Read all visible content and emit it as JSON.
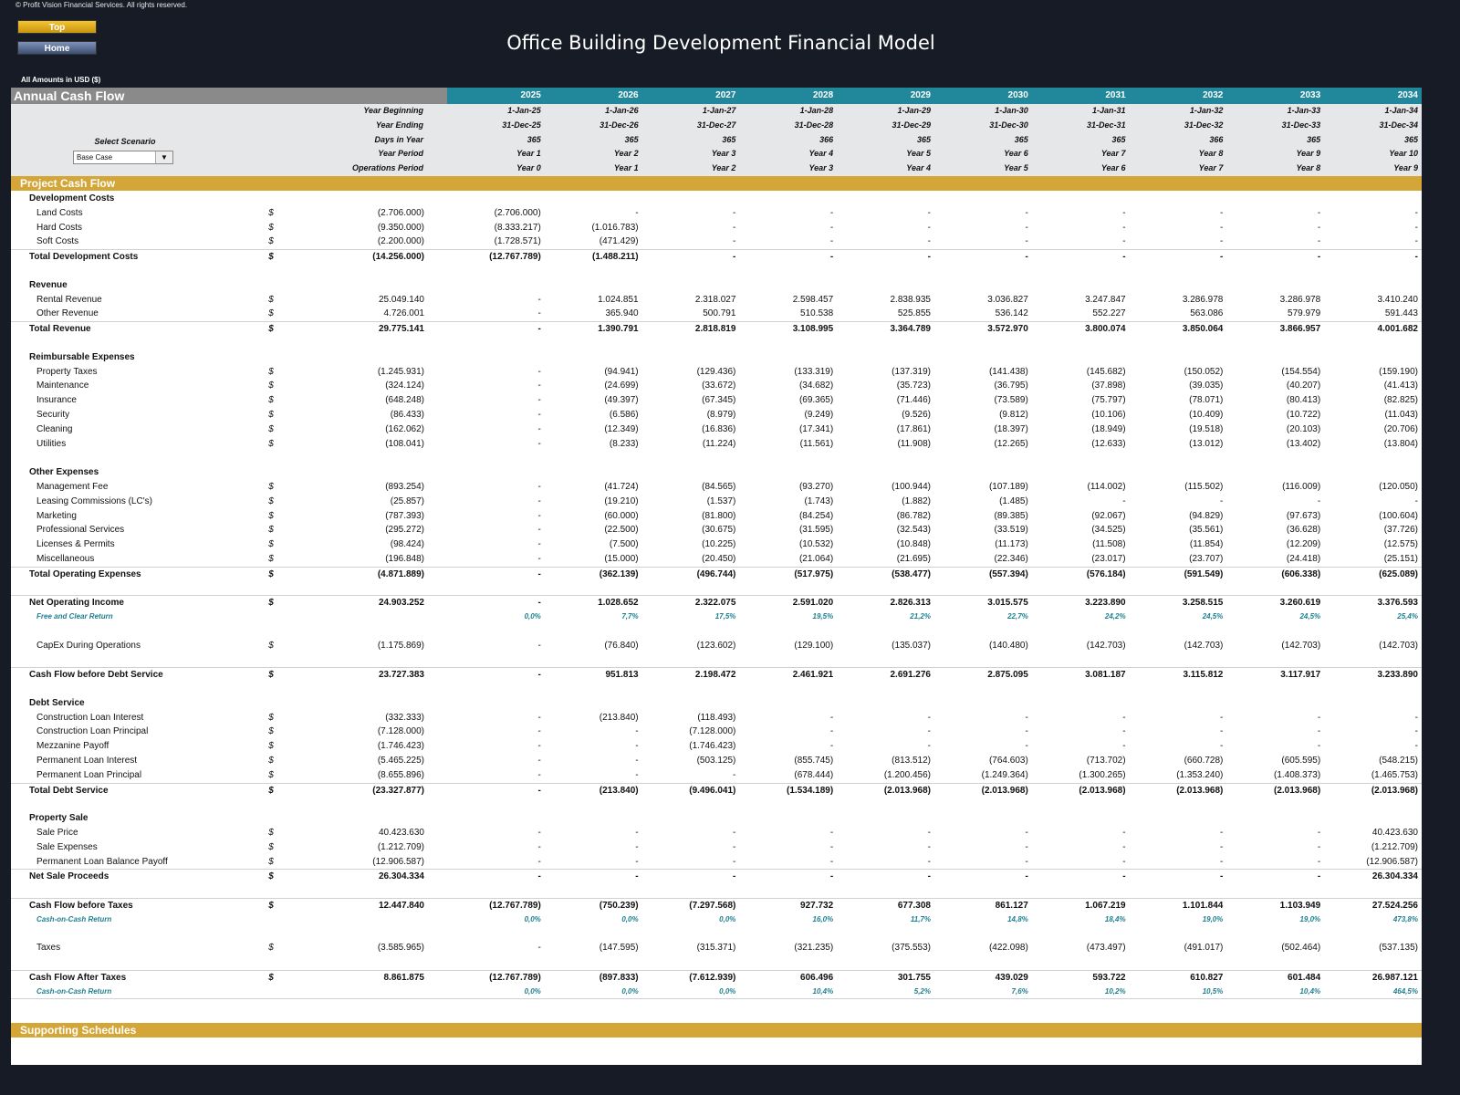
{
  "copyright": "© Profit Vision Financial Services. All rights reserved.",
  "nav": {
    "top": "Top",
    "home": "Home"
  },
  "title": "Office Building Development Financial Model",
  "units": "All Amounts in  USD ($)",
  "sheet_title": "Annual Cash Flow",
  "years": [
    "2025",
    "2026",
    "2027",
    "2028",
    "2029",
    "2030",
    "2031",
    "2032",
    "2033",
    "2034"
  ],
  "scenario": {
    "label": "Select Scenario",
    "value": "Base Case"
  },
  "info_rows": [
    {
      "label": "Year Beginning",
      "values": [
        "1-Jan-25",
        "1-Jan-26",
        "1-Jan-27",
        "1-Jan-28",
        "1-Jan-29",
        "1-Jan-30",
        "1-Jan-31",
        "1-Jan-32",
        "1-Jan-33",
        "1-Jan-34"
      ]
    },
    {
      "label": "Year Ending",
      "values": [
        "31-Dec-25",
        "31-Dec-26",
        "31-Dec-27",
        "31-Dec-28",
        "31-Dec-29",
        "31-Dec-30",
        "31-Dec-31",
        "31-Dec-32",
        "31-Dec-33",
        "31-Dec-34"
      ]
    },
    {
      "label": "Days in Year",
      "values": [
        "365",
        "365",
        "365",
        "366",
        "365",
        "365",
        "365",
        "366",
        "365",
        "365"
      ]
    },
    {
      "label": "Year Period",
      "values": [
        "Year 1",
        "Year 2",
        "Year 3",
        "Year 4",
        "Year 5",
        "Year 6",
        "Year 7",
        "Year 8",
        "Year 9",
        "Year 10"
      ]
    },
    {
      "label": "Operations Period",
      "values": [
        "Year 0",
        "Year 1",
        "Year 2",
        "Year 3",
        "Year 4",
        "Year 5",
        "Year 6",
        "Year 7",
        "Year 8",
        "Year 9"
      ]
    }
  ],
  "section_title": "Project Cash Flow",
  "footer_section": "Supporting Schedules",
  "currency": "$",
  "rows": [
    {
      "type": "section",
      "label": "Development Costs"
    },
    {
      "type": "item",
      "label": "Land Costs",
      "total": "(2.706.000)",
      "values": [
        "(2.706.000)",
        "-",
        "-",
        "-",
        "-",
        "-",
        "-",
        "-",
        "-",
        "-"
      ]
    },
    {
      "type": "item",
      "label": "Hard Costs",
      "total": "(9.350.000)",
      "values": [
        "(8.333.217)",
        "(1.016.783)",
        "-",
        "-",
        "-",
        "-",
        "-",
        "-",
        "-",
        "-"
      ]
    },
    {
      "type": "item",
      "label": "Soft Costs",
      "total": "(2.200.000)",
      "values": [
        "(1.728.571)",
        "(471.429)",
        "-",
        "-",
        "-",
        "-",
        "-",
        "-",
        "-",
        "-"
      ]
    },
    {
      "type": "total",
      "label": "Total Development Costs",
      "total": "(14.256.000)",
      "values": [
        "(12.767.789)",
        "(1.488.211)",
        "-",
        "-",
        "-",
        "-",
        "-",
        "-",
        "-",
        "-"
      ]
    },
    {
      "type": "blank"
    },
    {
      "type": "section",
      "label": "Revenue"
    },
    {
      "type": "item",
      "label": "Rental Revenue",
      "total": "25.049.140",
      "values": [
        "-",
        "1.024.851",
        "2.318.027",
        "2.598.457",
        "2.838.935",
        "3.036.827",
        "3.247.847",
        "3.286.978",
        "3.286.978",
        "3.410.240"
      ]
    },
    {
      "type": "item",
      "label": "Other Revenue",
      "total": "4.726.001",
      "values": [
        "-",
        "365.940",
        "500.791",
        "510.538",
        "525.855",
        "536.142",
        "552.227",
        "563.086",
        "579.979",
        "591.443"
      ]
    },
    {
      "type": "total",
      "label": "Total Revenue",
      "total": "29.775.141",
      "values": [
        "-",
        "1.390.791",
        "2.818.819",
        "3.108.995",
        "3.364.789",
        "3.572.970",
        "3.800.074",
        "3.850.064",
        "3.866.957",
        "4.001.682"
      ]
    },
    {
      "type": "blank"
    },
    {
      "type": "section",
      "label": "Reimbursable Expenses"
    },
    {
      "type": "item",
      "label": "Property Taxes",
      "total": "(1.245.931)",
      "values": [
        "-",
        "(94.941)",
        "(129.436)",
        "(133.319)",
        "(137.319)",
        "(141.438)",
        "(145.682)",
        "(150.052)",
        "(154.554)",
        "(159.190)"
      ]
    },
    {
      "type": "item",
      "label": "Maintenance",
      "total": "(324.124)",
      "values": [
        "-",
        "(24.699)",
        "(33.672)",
        "(34.682)",
        "(35.723)",
        "(36.795)",
        "(37.898)",
        "(39.035)",
        "(40.207)",
        "(41.413)"
      ]
    },
    {
      "type": "item",
      "label": "Insurance",
      "total": "(648.248)",
      "values": [
        "-",
        "(49.397)",
        "(67.345)",
        "(69.365)",
        "(71.446)",
        "(73.589)",
        "(75.797)",
        "(78.071)",
        "(80.413)",
        "(82.825)"
      ]
    },
    {
      "type": "item",
      "label": "Security",
      "total": "(86.433)",
      "values": [
        "-",
        "(6.586)",
        "(8.979)",
        "(9.249)",
        "(9.526)",
        "(9.812)",
        "(10.106)",
        "(10.409)",
        "(10.722)",
        "(11.043)"
      ]
    },
    {
      "type": "item",
      "label": "Cleaning",
      "total": "(162.062)",
      "values": [
        "-",
        "(12.349)",
        "(16.836)",
        "(17.341)",
        "(17.861)",
        "(18.397)",
        "(18.949)",
        "(19.518)",
        "(20.103)",
        "(20.706)"
      ]
    },
    {
      "type": "item",
      "label": "Utilities",
      "total": "(108.041)",
      "values": [
        "-",
        "(8.233)",
        "(11.224)",
        "(11.561)",
        "(11.908)",
        "(12.265)",
        "(12.633)",
        "(13.012)",
        "(13.402)",
        "(13.804)"
      ]
    },
    {
      "type": "blank"
    },
    {
      "type": "section",
      "label": "Other Expenses"
    },
    {
      "type": "item",
      "label": "Management Fee",
      "total": "(893.254)",
      "values": [
        "-",
        "(41.724)",
        "(84.565)",
        "(93.270)",
        "(100.944)",
        "(107.189)",
        "(114.002)",
        "(115.502)",
        "(116.009)",
        "(120.050)"
      ]
    },
    {
      "type": "item",
      "label": "Leasing Commissions (LC's)",
      "total": "(25.857)",
      "values": [
        "-",
        "(19.210)",
        "(1.537)",
        "(1.743)",
        "(1.882)",
        "(1.485)",
        "-",
        "-",
        "-",
        "-"
      ]
    },
    {
      "type": "item",
      "label": "Marketing",
      "total": "(787.393)",
      "values": [
        "-",
        "(60.000)",
        "(81.800)",
        "(84.254)",
        "(86.782)",
        "(89.385)",
        "(92.067)",
        "(94.829)",
        "(97.673)",
        "(100.604)"
      ]
    },
    {
      "type": "item",
      "label": "Professional Services",
      "total": "(295.272)",
      "values": [
        "-",
        "(22.500)",
        "(30.675)",
        "(31.595)",
        "(32.543)",
        "(33.519)",
        "(34.525)",
        "(35.561)",
        "(36.628)",
        "(37.726)"
      ]
    },
    {
      "type": "item",
      "label": "Licenses & Permits",
      "total": "(98.424)",
      "values": [
        "-",
        "(7.500)",
        "(10.225)",
        "(10.532)",
        "(10.848)",
        "(11.173)",
        "(11.508)",
        "(11.854)",
        "(12.209)",
        "(12.575)"
      ]
    },
    {
      "type": "item",
      "label": "Miscellaneous",
      "total": "(196.848)",
      "values": [
        "-",
        "(15.000)",
        "(20.450)",
        "(21.064)",
        "(21.695)",
        "(22.346)",
        "(23.017)",
        "(23.707)",
        "(24.418)",
        "(25.151)"
      ]
    },
    {
      "type": "total",
      "label": "Total Operating Expenses",
      "total": "(4.871.889)",
      "values": [
        "-",
        "(362.139)",
        "(496.744)",
        "(517.975)",
        "(538.477)",
        "(557.394)",
        "(576.184)",
        "(591.549)",
        "(606.338)",
        "(625.089)"
      ]
    },
    {
      "type": "blank"
    },
    {
      "type": "total",
      "label": "Net Operating Income",
      "total": "24.903.252",
      "values": [
        "-",
        "1.028.652",
        "2.322.075",
        "2.591.020",
        "2.826.313",
        "3.015.575",
        "3.223.890",
        "3.258.515",
        "3.260.619",
        "3.376.593"
      ]
    },
    {
      "type": "pct",
      "label": "Free and Clear Return",
      "values": [
        "0,0%",
        "7,7%",
        "17,5%",
        "19,5%",
        "21,2%",
        "22,7%",
        "24,2%",
        "24,5%",
        "24,5%",
        "25,4%"
      ]
    },
    {
      "type": "blank"
    },
    {
      "type": "item",
      "label": "CapEx During Operations",
      "total": "(1.175.869)",
      "values": [
        "-",
        "(76.840)",
        "(123.602)",
        "(129.100)",
        "(135.037)",
        "(140.480)",
        "(142.703)",
        "(142.703)",
        "(142.703)",
        "(142.703)"
      ]
    },
    {
      "type": "blank"
    },
    {
      "type": "total",
      "label": "Cash Flow before Debt Service",
      "total": "23.727.383",
      "values": [
        "-",
        "951.813",
        "2.198.472",
        "2.461.921",
        "2.691.276",
        "2.875.095",
        "3.081.187",
        "3.115.812",
        "3.117.917",
        "3.233.890"
      ]
    },
    {
      "type": "blank"
    },
    {
      "type": "section",
      "label": "Debt Service"
    },
    {
      "type": "item",
      "label": "Construction Loan Interest",
      "total": "(332.333)",
      "values": [
        "-",
        "(213.840)",
        "(118.493)",
        "-",
        "-",
        "-",
        "-",
        "-",
        "-",
        "-"
      ]
    },
    {
      "type": "item",
      "label": "Construction Loan Principal",
      "total": "(7.128.000)",
      "values": [
        "-",
        "-",
        "(7.128.000)",
        "-",
        "-",
        "-",
        "-",
        "-",
        "-",
        "-"
      ]
    },
    {
      "type": "item",
      "label": "Mezzanine Payoff",
      "total": "(1.746.423)",
      "values": [
        "-",
        "-",
        "(1.746.423)",
        "-",
        "-",
        "-",
        "-",
        "-",
        "-",
        "-"
      ]
    },
    {
      "type": "item",
      "label": "Permanent Loan Interest",
      "total": "(5.465.225)",
      "values": [
        "-",
        "-",
        "(503.125)",
        "(855.745)",
        "(813.512)",
        "(764.603)",
        "(713.702)",
        "(660.728)",
        "(605.595)",
        "(548.215)"
      ]
    },
    {
      "type": "item",
      "label": "Permanent Loan Principal",
      "total": "(8.655.896)",
      "values": [
        "-",
        "-",
        "-",
        "(678.444)",
        "(1.200.456)",
        "(1.249.364)",
        "(1.300.265)",
        "(1.353.240)",
        "(1.408.373)",
        "(1.465.753)"
      ]
    },
    {
      "type": "total",
      "label": "Total Debt Service",
      "total": "(23.327.877)",
      "values": [
        "-",
        "(213.840)",
        "(9.496.041)",
        "(1.534.189)",
        "(2.013.968)",
        "(2.013.968)",
        "(2.013.968)",
        "(2.013.968)",
        "(2.013.968)",
        "(2.013.968)"
      ]
    },
    {
      "type": "blank"
    },
    {
      "type": "section",
      "label": "Property Sale"
    },
    {
      "type": "item",
      "label": "Sale Price",
      "total": "40.423.630",
      "values": [
        "-",
        "-",
        "-",
        "-",
        "-",
        "-",
        "-",
        "-",
        "-",
        "40.423.630"
      ]
    },
    {
      "type": "item",
      "label": "Sale Expenses",
      "total": "(1.212.709)",
      "values": [
        "-",
        "-",
        "-",
        "-",
        "-",
        "-",
        "-",
        "-",
        "-",
        "(1.212.709)"
      ]
    },
    {
      "type": "item",
      "label": "Permanent Loan Balance Payoff",
      "total": "(12.906.587)",
      "values": [
        "-",
        "-",
        "-",
        "-",
        "-",
        "-",
        "-",
        "-",
        "-",
        "(12.906.587)"
      ]
    },
    {
      "type": "total",
      "label": "Net Sale Proceeds",
      "total": "26.304.334",
      "values": [
        "-",
        "-",
        "-",
        "-",
        "-",
        "-",
        "-",
        "-",
        "-",
        "26.304.334"
      ]
    },
    {
      "type": "blank"
    },
    {
      "type": "total",
      "label": "Cash Flow before Taxes",
      "total": "12.447.840",
      "values": [
        "(12.767.789)",
        "(750.239)",
        "(7.297.568)",
        "927.732",
        "677.308",
        "861.127",
        "1.067.219",
        "1.101.844",
        "1.103.949",
        "27.524.256"
      ]
    },
    {
      "type": "pct",
      "label": "Cash-on-Cash Return",
      "values": [
        "0,0%",
        "0,0%",
        "0,0%",
        "16,0%",
        "11,7%",
        "14,8%",
        "18,4%",
        "19,0%",
        "19,0%",
        "473,8%"
      ]
    },
    {
      "type": "blank"
    },
    {
      "type": "item",
      "label": "Taxes",
      "total": "(3.585.965)",
      "values": [
        "-",
        "(147.595)",
        "(315.371)",
        "(321.235)",
        "(375.553)",
        "(422.098)",
        "(473.497)",
        "(491.017)",
        "(502.464)",
        "(537.135)"
      ]
    },
    {
      "type": "blank"
    },
    {
      "type": "total",
      "label": "Cash Flow After Taxes",
      "total": "8.861.875",
      "values": [
        "(12.767.789)",
        "(897.833)",
        "(7.612.939)",
        "606.496",
        "301.755",
        "439.029",
        "593.722",
        "610.827",
        "601.484",
        "26.987.121"
      ]
    },
    {
      "type": "pct",
      "label": "Cash-on-Cash Return",
      "values": [
        "0,0%",
        "0,0%",
        "0,0%",
        "10,4%",
        "5,2%",
        "7,6%",
        "10,2%",
        "10,5%",
        "10,4%",
        "464,5%"
      ],
      "last": true
    }
  ]
}
